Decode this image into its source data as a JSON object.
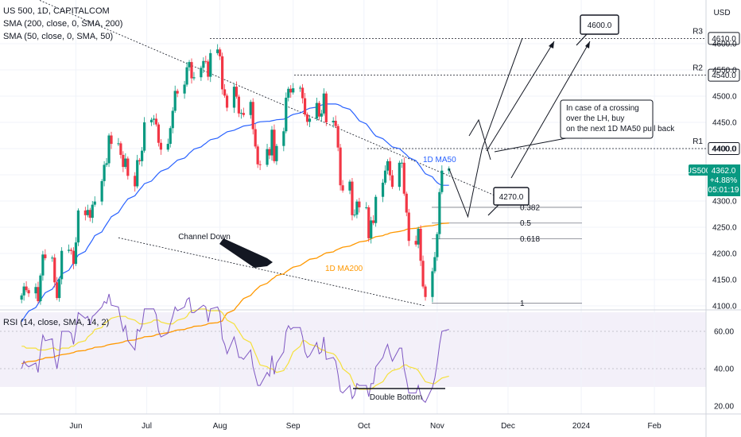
{
  "header": {
    "title": "US 500, 1D, CAPITALCOM",
    "indicators": [
      "SMA (200, close, 0, SMA, 200)",
      "SMA (50, close, 0, SMA, 50)"
    ],
    "rsi_label": "RSI (14, close, SMA, 14, 2)",
    "currency": "USD"
  },
  "price_axis": {
    "ticks": [
      "4600.0",
      "4550.0",
      "4500.0",
      "4450.0",
      "4400.0",
      "4350.0",
      "4300.0",
      "4250.0",
      "4200.0",
      "4150.0",
      "4100.0"
    ],
    "current_tag": "US500",
    "current_price": "4362.0",
    "current_change": "+4.88%",
    "countdown": "05:01:19"
  },
  "rsi_axis": {
    "ticks": [
      "60.00",
      "40.00",
      "20.00"
    ]
  },
  "time_axis": {
    "ticks": [
      "Jun",
      "Jul",
      "Aug",
      "Sep",
      "Oct",
      "Nov",
      "Dec",
      "2024",
      "Feb"
    ]
  },
  "colors": {
    "up": "#089981",
    "down": "#f23645",
    "ma50": "#2962ff",
    "ma200": "#ff9800",
    "rsi": "#7e57c2",
    "rsi_ma": "#f5e03c"
  },
  "chart_data": {
    "type": "candlestick",
    "symbol": "US 500",
    "interval": "1D",
    "dates": [
      "2023-05-09",
      "2023-05-10",
      "2023-05-11",
      "2023-05-12",
      "2023-05-15",
      "2023-05-16",
      "2023-05-17",
      "2023-05-18",
      "2023-05-19",
      "2023-05-22",
      "2023-05-23",
      "2023-05-24",
      "2023-05-25",
      "2023-05-26",
      "2023-05-29",
      "2023-05-30",
      "2023-05-31",
      "2023-06-01",
      "2023-06-02",
      "2023-06-05",
      "2023-06-06",
      "2023-06-07",
      "2023-06-08",
      "2023-06-09",
      "2023-06-12",
      "2023-06-13",
      "2023-06-14",
      "2023-06-15",
      "2023-06-16",
      "2023-06-19",
      "2023-06-20",
      "2023-06-21",
      "2023-06-22",
      "2023-06-23",
      "2023-06-26",
      "2023-06-27",
      "2023-06-28",
      "2023-06-29",
      "2023-06-30",
      "2023-07-03",
      "2023-07-04",
      "2023-07-05",
      "2023-07-06",
      "2023-07-07",
      "2023-07-10",
      "2023-07-11",
      "2023-07-12",
      "2023-07-13",
      "2023-07-14",
      "2023-07-17",
      "2023-07-18",
      "2023-07-19",
      "2023-07-20",
      "2023-07-21",
      "2023-07-24",
      "2023-07-25",
      "2023-07-26",
      "2023-07-27",
      "2023-07-28",
      "2023-07-31",
      "2023-08-01",
      "2023-08-02",
      "2023-08-03",
      "2023-08-04",
      "2023-08-07",
      "2023-08-08",
      "2023-08-09",
      "2023-08-10",
      "2023-08-11",
      "2023-08-14",
      "2023-08-15",
      "2023-08-16",
      "2023-08-17",
      "2023-08-18",
      "2023-08-21",
      "2023-08-22",
      "2023-08-23",
      "2023-08-24",
      "2023-08-25",
      "2023-08-28",
      "2023-08-29",
      "2023-08-30",
      "2023-08-31",
      "2023-09-01",
      "2023-09-04",
      "2023-09-05",
      "2023-09-06",
      "2023-09-07",
      "2023-09-08",
      "2023-09-11",
      "2023-09-12",
      "2023-09-13",
      "2023-09-14",
      "2023-09-15",
      "2023-09-18",
      "2023-09-19",
      "2023-09-20",
      "2023-09-21",
      "2023-09-22",
      "2023-09-25",
      "2023-09-26",
      "2023-09-27",
      "2023-09-28",
      "2023-09-29",
      "2023-10-02",
      "2023-10-03",
      "2023-10-04",
      "2023-10-05",
      "2023-10-06",
      "2023-10-09",
      "2023-10-10",
      "2023-10-11",
      "2023-10-12",
      "2023-10-13",
      "2023-10-16",
      "2023-10-17",
      "2023-10-18",
      "2023-10-19",
      "2023-10-20",
      "2023-10-23",
      "2023-10-24",
      "2023-10-25",
      "2023-10-26",
      "2023-10-27",
      "2023-10-30",
      "2023-10-31",
      "2023-11-01",
      "2023-11-02",
      "2023-11-03",
      "2023-11-06"
    ],
    "close": [
      4120,
      4137,
      4130,
      4124,
      4136,
      4109,
      4158,
      4198,
      4191,
      4192,
      4145,
      4115,
      4151,
      4205,
      4207,
      4205,
      4180,
      4221,
      4282,
      4273,
      4283,
      4268,
      4293,
      4299,
      4338,
      4369,
      4372,
      4425,
      4409,
      4410,
      4388,
      4365,
      4381,
      4348,
      4328,
      4378,
      4376,
      4396,
      4450,
      4455,
      4457,
      4446,
      4411,
      4398,
      4409,
      4439,
      4472,
      4510,
      4505,
      4522,
      4555,
      4565,
      4534,
      4536,
      4554,
      4567,
      4566,
      4537,
      4582,
      4589,
      4576,
      4513,
      4501,
      4478,
      4518,
      4499,
      4467,
      4468,
      4464,
      4489,
      4437,
      4404,
      4370,
      4369,
      4399,
      4387,
      4436,
      4376,
      4405,
      4433,
      4497,
      4514,
      4507,
      4515,
      4516,
      4496,
      4465,
      4451,
      4457,
      4487,
      4461,
      4467,
      4505,
      4450,
      4453,
      4443,
      4402,
      4330,
      4320,
      4337,
      4273,
      4274,
      4299,
      4288,
      4288,
      4229,
      4263,
      4258,
      4308,
      4335,
      4358,
      4376,
      4349,
      4327,
      4373,
      4373,
      4314,
      4278,
      4224,
      4217,
      4247,
      4186,
      4137,
      4117,
      4166,
      4193,
      4237,
      4317,
      4358,
      4362
    ],
    "ma50_close": [
      4070,
      4077,
      4084,
      4090,
      4097,
      4104,
      4111,
      4118,
      4125,
      4132,
      4139,
      4146,
      4153,
      4161,
      4168,
      4175,
      4182,
      4190,
      4197,
      4204,
      4212,
      4219,
      4226,
      4234,
      4241,
      4249,
      4256,
      4263,
      4270,
      4278,
      4285,
      4292,
      4298,
      4304,
      4310,
      4316,
      4322,
      4327,
      4333,
      4338,
      4343,
      4348,
      4353,
      4357,
      4362,
      4366,
      4370,
      4374,
      4378,
      4382,
      4386,
      4391,
      4395,
      4399,
      4403,
      4407,
      4410,
      4414,
      4417,
      4420,
      4423,
      4426,
      4429,
      4432,
      4435,
      4437,
      4439,
      4441,
      4443,
      4445,
      4447,
      4448,
      4450,
      4451,
      4452,
      4452,
      4453,
      4454,
      4455,
      4456,
      4458,
      4460,
      4463,
      4465,
      4468,
      4470,
      4473,
      4475,
      4477,
      4479,
      4481,
      4483,
      4484,
      4485,
      4485,
      4485,
      4484,
      4482,
      4479,
      4475,
      4470,
      4465,
      4459,
      4453,
      4447,
      4441,
      4435,
      4429,
      4424,
      4419,
      4415,
      4411,
      4407,
      4403,
      4400,
      4396,
      4392,
      4388,
      4383,
      4377,
      4371,
      4365,
      4358,
      4352,
      4346,
      4340,
      4335,
      4332,
      4330,
      4330
    ],
    "ma200_close": [
      3990,
      3991,
      3993,
      3994,
      3995,
      3997,
      3998,
      3999,
      4001,
      4002,
      4003,
      4005,
      4006,
      4007,
      4009,
      4010,
      4011,
      4013,
      4014,
      4015,
      4017,
      4018,
      4019,
      4021,
      4022,
      4023,
      4025,
      4026,
      4027,
      4029,
      4030,
      4031,
      4033,
      4034,
      4035,
      4037,
      4038,
      4039,
      4041,
      4042,
      4043,
      4045,
      4046,
      4047,
      4049,
      4050,
      4051,
      4053,
      4054,
      4055,
      4057,
      4058,
      4059,
      4061,
      4062,
      4063,
      4064,
      4066,
      4067,
      4068,
      4070,
      4071,
      4080,
      4086,
      4092,
      4098,
      4103,
      4109,
      4114,
      4120,
      4125,
      4130,
      4134,
      4138,
      4143,
      4147,
      4151,
      4154,
      4158,
      4161,
      4165,
      4168,
      4171,
      4174,
      4177,
      4180,
      4183,
      4186,
      4189,
      4191,
      4194,
      4196,
      4199,
      4201,
      4203,
      4206,
      4208,
      4210,
      4212,
      4214,
      4216,
      4218,
      4220,
      4222,
      4224,
      4226,
      4228,
      4230,
      4232,
      4234,
      4236,
      4237,
      4239,
      4240,
      4242,
      4243,
      4244,
      4246,
      4247,
      4248,
      4249,
      4250,
      4251,
      4252,
      4253,
      4254,
      4255,
      4256,
      4257,
      4258
    ],
    "rsi": [
      40,
      44,
      42,
      41,
      43,
      38,
      49,
      58,
      55,
      56,
      46,
      40,
      48,
      60,
      60,
      59,
      53,
      61,
      70,
      67,
      68,
      64,
      68,
      69,
      73,
      76,
      75,
      80,
      74,
      73,
      66,
      60,
      63,
      55,
      50,
      61,
      60,
      63,
      72,
      72,
      72,
      69,
      60,
      57,
      59,
      64,
      68,
      73,
      71,
      73,
      77,
      78,
      70,
      70,
      73,
      74,
      73,
      65,
      72,
      73,
      70,
      56,
      53,
      48,
      57,
      52,
      46,
      46,
      45,
      50,
      41,
      36,
      31,
      31,
      38,
      36,
      47,
      37,
      43,
      49,
      60,
      63,
      61,
      62,
      62,
      57,
      49,
      46,
      47,
      54,
      48,
      49,
      57,
      45,
      46,
      44,
      37,
      28,
      27,
      31,
      24,
      26,
      32,
      31,
      31,
      25,
      32,
      32,
      41,
      46,
      50,
      53,
      48,
      44,
      51,
      51,
      40,
      34,
      27,
      27,
      31,
      26,
      23,
      22,
      30,
      35,
      43,
      53,
      60,
      61
    ],
    "rsi_ma": [
      52,
      52,
      51,
      51,
      51,
      50,
      50,
      50,
      50,
      51,
      51,
      50,
      50,
      51,
      51,
      52,
      52,
      53,
      54,
      55,
      57,
      58,
      59,
      61,
      62,
      64,
      65,
      66,
      67,
      68,
      68,
      68,
      68,
      67,
      66,
      65,
      64,
      64,
      64,
      65,
      66,
      66,
      66,
      65,
      64,
      64,
      64,
      65,
      66,
      67,
      68,
      70,
      71,
      71,
      72,
      72,
      72,
      71,
      71,
      71,
      71,
      70,
      68,
      66,
      64,
      62,
      60,
      58,
      56,
      54,
      51,
      48,
      45,
      42,
      41,
      40,
      40,
      39,
      38,
      39,
      41,
      43,
      46,
      49,
      52,
      55,
      55,
      54,
      53,
      52,
      51,
      50,
      50,
      49,
      48,
      47,
      45,
      43,
      40,
      37,
      34,
      31,
      30,
      29,
      29,
      29,
      29,
      30,
      31,
      33,
      35,
      37,
      38,
      39,
      40,
      41,
      42,
      42,
      41,
      40,
      39,
      37,
      35,
      33,
      32,
      32,
      33,
      34,
      35,
      36
    ],
    "price_ylim": [
      4095,
      4680
    ],
    "rsi_ylim": [
      14,
      76
    ],
    "projection_path": [
      [
        "2023-11-06",
        4362
      ],
      [
        "2023-11-14",
        4270
      ],
      [
        "2023-11-20",
        4400
      ],
      [
        "2023-12-07",
        4610
      ]
    ],
    "annotations": [
      {
        "text": "Channel Down",
        "type": "label"
      },
      {
        "text": "1D MA50",
        "type": "label"
      },
      {
        "text": "1D MA200",
        "type": "label"
      },
      {
        "text": "Double Bottom",
        "type": "label"
      },
      {
        "text": "4600.0",
        "type": "callout"
      },
      {
        "text": "4270.0",
        "type": "callout"
      },
      {
        "text": "In case of a crossing over the LH, buy on the next 1D MA50 pull back",
        "type": "note"
      }
    ],
    "levels": [
      {
        "name": "R3",
        "value": 4610,
        "label": "4610.0"
      },
      {
        "name": "R2",
        "value": 4540,
        "label": "4540.0"
      },
      {
        "name": "R1",
        "value": 4400,
        "label": "4400.0"
      }
    ],
    "fib_levels": [
      {
        "label": "0.382",
        "value": 4288
      },
      {
        "label": "0.5",
        "value": 4258
      },
      {
        "label": "0.618",
        "value": 4228
      },
      {
        "label": "1",
        "value": 4105
      }
    ],
    "channel_lines": [
      {
        "name": "upper",
        "from": [
          "2023-04-17",
          4740
        ],
        "to": [
          "2023-12-05",
          4292
        ]
      },
      {
        "name": "lower",
        "from": [
          "2023-06-19",
          4230
        ],
        "to": [
          "2023-10-27",
          4100
        ]
      }
    ]
  }
}
